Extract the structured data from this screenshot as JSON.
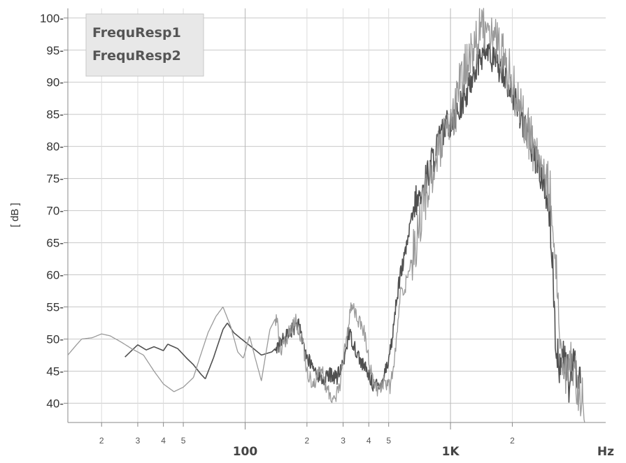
{
  "chart_data": {
    "type": "line",
    "xscale": "log",
    "xlim": [
      13.7,
      5700
    ],
    "ylim": [
      37,
      101.5
    ],
    "ylabel": "[ dB ]",
    "x_unit": "Hz",
    "y_ticks": [
      40,
      45,
      50,
      55,
      60,
      65,
      70,
      75,
      80,
      85,
      90,
      95,
      100
    ],
    "x_ticks": [
      {
        "value": 20,
        "label": "2"
      },
      {
        "value": 30,
        "label": "3"
      },
      {
        "value": 40,
        "label": "4"
      },
      {
        "value": 50,
        "label": "5"
      },
      {
        "value": 100,
        "label": "100"
      },
      {
        "value": 200,
        "label": "2"
      },
      {
        "value": 300,
        "label": "3"
      },
      {
        "value": 400,
        "label": "4"
      },
      {
        "value": 500,
        "label": "5"
      },
      {
        "value": 1000,
        "label": "1K"
      },
      {
        "value": 2000,
        "label": "2"
      }
    ],
    "grid": true,
    "legend_position": "top-left",
    "series": [
      {
        "name": "FrequResp1",
        "color": "#505050",
        "points": [
          [
            26,
            47.2
          ],
          [
            28,
            48.2
          ],
          [
            30,
            49.1
          ],
          [
            33,
            48.3
          ],
          [
            36,
            48.8
          ],
          [
            40,
            48.2
          ],
          [
            42,
            49.2
          ],
          [
            47,
            48.5
          ],
          [
            52,
            47.0
          ],
          [
            56,
            46.0
          ],
          [
            61,
            44.5
          ],
          [
            64,
            43.8
          ],
          [
            70,
            47.0
          ],
          [
            78,
            51.5
          ],
          [
            82,
            52.5
          ],
          [
            88,
            51.0
          ],
          [
            96,
            50.0
          ],
          [
            110,
            48.5
          ],
          [
            120,
            47.5
          ],
          [
            135,
            48.0
          ],
          [
            150,
            49.5
          ],
          [
            165,
            51.0
          ],
          [
            180,
            52.5
          ],
          [
            190,
            50.0
          ],
          [
            200,
            47.0
          ],
          [
            220,
            45.0
          ],
          [
            240,
            43.5
          ],
          [
            260,
            44.5
          ],
          [
            280,
            44.0
          ],
          [
            300,
            46.0
          ],
          [
            320,
            51.0
          ],
          [
            340,
            49.0
          ],
          [
            360,
            47.0
          ],
          [
            390,
            45.0
          ],
          [
            420,
            43.0
          ],
          [
            450,
            42.5
          ],
          [
            480,
            45.0
          ],
          [
            500,
            47.0
          ],
          [
            520,
            50.0
          ],
          [
            545,
            56.0
          ],
          [
            570,
            60.0
          ],
          [
            600,
            63.0
          ],
          [
            640,
            68.0
          ],
          [
            680,
            71.5
          ],
          [
            720,
            72.0
          ],
          [
            760,
            75.0
          ],
          [
            820,
            78.0
          ],
          [
            880,
            81.0
          ],
          [
            950,
            83.0
          ],
          [
            1000,
            84.0
          ],
          [
            1100,
            86.0
          ],
          [
            1200,
            88.0
          ],
          [
            1300,
            92.0
          ],
          [
            1400,
            94.0
          ],
          [
            1500,
            95.0
          ],
          [
            1600,
            93.5
          ],
          [
            1800,
            92.0
          ],
          [
            2000,
            88.0
          ],
          [
            2200,
            85.0
          ],
          [
            2400,
            81.0
          ],
          [
            2600,
            78.0
          ],
          [
            2800,
            75.0
          ],
          [
            2950,
            72.0
          ],
          [
            3050,
            69.0
          ],
          [
            3150,
            60.0
          ],
          [
            3250,
            50.0
          ],
          [
            3400,
            46.0
          ],
          [
            3600,
            47.0
          ],
          [
            3800,
            43.0
          ],
          [
            4000,
            46.0
          ],
          [
            4300,
            44.0
          ]
        ]
      },
      {
        "name": "FrequResp2",
        "color": "#9a9a9a",
        "points": [
          [
            13.7,
            47.5
          ],
          [
            15,
            49.0
          ],
          [
            16,
            50.0
          ],
          [
            18,
            50.2
          ],
          [
            20,
            50.8
          ],
          [
            22,
            50.5
          ],
          [
            25,
            49.5
          ],
          [
            28,
            48.5
          ],
          [
            32,
            47.5
          ],
          [
            36,
            45.0
          ],
          [
            40,
            43.0
          ],
          [
            45,
            41.8
          ],
          [
            50,
            42.5
          ],
          [
            56,
            44.0
          ],
          [
            60,
            47.0
          ],
          [
            66,
            51.0
          ],
          [
            72,
            53.5
          ],
          [
            78,
            55.0
          ],
          [
            85,
            52.0
          ],
          [
            92,
            48.0
          ],
          [
            98,
            47.0
          ],
          [
            105,
            50.5
          ],
          [
            112,
            47.0
          ],
          [
            120,
            43.5
          ],
          [
            132,
            51.5
          ],
          [
            142,
            53.5
          ],
          [
            150,
            48.0
          ],
          [
            165,
            51.5
          ],
          [
            175,
            53.0
          ],
          [
            190,
            50.0
          ],
          [
            200,
            45.0
          ],
          [
            215,
            43.0
          ],
          [
            235,
            45.5
          ],
          [
            250,
            42.0
          ],
          [
            270,
            40.5
          ],
          [
            290,
            43.0
          ],
          [
            310,
            50.0
          ],
          [
            330,
            55.5
          ],
          [
            355,
            53.0
          ],
          [
            380,
            51.0
          ],
          [
            410,
            45.0
          ],
          [
            440,
            42.0
          ],
          [
            480,
            43.5
          ],
          [
            510,
            42.5
          ],
          [
            540,
            48.0
          ],
          [
            570,
            57.0
          ],
          [
            600,
            58.0
          ],
          [
            640,
            62.0
          ],
          [
            700,
            67.0
          ],
          [
            750,
            72.0
          ],
          [
            820,
            76.0
          ],
          [
            900,
            80.0
          ],
          [
            980,
            82.5
          ],
          [
            1050,
            85.0
          ],
          [
            1120,
            90.0
          ],
          [
            1200,
            93.0
          ],
          [
            1300,
            95.5
          ],
          [
            1400,
            98.0
          ],
          [
            1500,
            99.5
          ],
          [
            1650,
            97.0
          ],
          [
            1800,
            94.0
          ],
          [
            2000,
            90.0
          ],
          [
            2200,
            86.0
          ],
          [
            2400,
            82.0
          ],
          [
            2600,
            79.0
          ],
          [
            2900,
            75.0
          ],
          [
            3100,
            72.0
          ],
          [
            3250,
            62.0
          ],
          [
            3400,
            52.0
          ],
          [
            3600,
            44.0
          ],
          [
            3900,
            47.0
          ],
          [
            4200,
            42.0
          ],
          [
            4500,
            40.0
          ]
        ]
      }
    ]
  }
}
